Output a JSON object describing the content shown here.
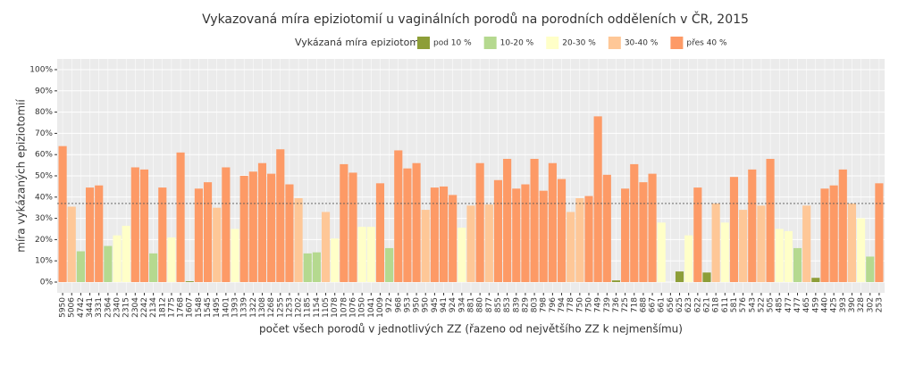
{
  "chart_data": {
    "type": "bar",
    "title": "Vykazovaná míra epiziotomií u vaginálních porodů na porodních odděleních v ČR, 2015",
    "legend_title": "Vykázaná míra epiziotomií",
    "legend": [
      {
        "name": "pod 10 %",
        "color": "#8d9e38"
      },
      {
        "name": "10-20 %",
        "color": "#b5d98f"
      },
      {
        "name": "20-30 %",
        "color": "#ffffc8"
      },
      {
        "name": "30-40 %",
        "color": "#fec797"
      },
      {
        "name": "přes 40 %",
        "color": "#fd9a66"
      }
    ],
    "xlabel": "počet všech porodů v jednotlivých ZZ (řazeno od největšího ZZ k nejmenšímu)",
    "ylabel": "míra vykázaných epiziotomií",
    "categories": [
      "5950",
      "5006",
      "4742",
      "3441",
      "3331",
      "2364",
      "2340",
      "2315",
      "2304",
      "2242",
      "2134",
      "1812",
      "1775",
      "1768",
      "1607",
      "1548",
      "1545",
      "1495",
      "1401",
      "1393",
      "1339",
      "1322",
      "1308",
      "1268",
      "1255",
      "1253",
      "1202",
      "1185",
      "1154",
      "1105",
      "1078",
      "1078",
      "1076",
      "1050",
      "1041",
      "1009",
      "972",
      "968",
      "953",
      "950",
      "950",
      "945",
      "941",
      "924",
      "934",
      "881",
      "880",
      "877",
      "855",
      "853",
      "839",
      "829",
      "803",
      "798",
      "796",
      "794",
      "778",
      "750",
      "750",
      "749",
      "739",
      "736",
      "725",
      "718",
      "688",
      "667",
      "661",
      "656",
      "625",
      "623",
      "622",
      "621",
      "618",
      "611",
      "581",
      "576",
      "543",
      "522",
      "505",
      "485",
      "477",
      "477",
      "465",
      "459",
      "440",
      "425",
      "393",
      "390",
      "328",
      "302",
      "253"
    ],
    "values": [
      64,
      35.5,
      14.5,
      44.5,
      45.5,
      17,
      22,
      26.5,
      54,
      53,
      13.5,
      44.5,
      21,
      61,
      0.4,
      44,
      47,
      35,
      54,
      25,
      50,
      52,
      56,
      51,
      62.5,
      46,
      39.5,
      13.5,
      14,
      33,
      20.5,
      55.5,
      51.5,
      26,
      26,
      46.5,
      16,
      62,
      53.5,
      56,
      34,
      44.5,
      45,
      41,
      25.6,
      36,
      56,
      36.5,
      48,
      58,
      44,
      46,
      58,
      43,
      56,
      48.5,
      33,
      39.5,
      40.5,
      78,
      50.5,
      0.8,
      44,
      55.5,
      47,
      51,
      28,
      null,
      5,
      22,
      44.5,
      4.5,
      37,
      28,
      49.5,
      34,
      53,
      36,
      58,
      25,
      24,
      16,
      36,
      2,
      44,
      45.5,
      53,
      37,
      30,
      12,
      46.5
    ],
    "colors": [
      "#fd9a66",
      "#fec797",
      "#b5d98f",
      "#fd9a66",
      "#fd9a66",
      "#b5d98f",
      "#ffffc8",
      "#ffffc8",
      "#fd9a66",
      "#fd9a66",
      "#b5d98f",
      "#fd9a66",
      "#ffffc8",
      "#fd9a66",
      "#8d9e38",
      "#fd9a66",
      "#fd9a66",
      "#fec797",
      "#fd9a66",
      "#ffffc8",
      "#fd9a66",
      "#fd9a66",
      "#fd9a66",
      "#fd9a66",
      "#fd9a66",
      "#fd9a66",
      "#fec797",
      "#b5d98f",
      "#b5d98f",
      "#fec797",
      "#ffffc8",
      "#fd9a66",
      "#fd9a66",
      "#ffffc8",
      "#ffffc8",
      "#fd9a66",
      "#b5d98f",
      "#fd9a66",
      "#fd9a66",
      "#fd9a66",
      "#fec797",
      "#fd9a66",
      "#fd9a66",
      "#fd9a66",
      "#ffffc8",
      "#fec797",
      "#fd9a66",
      "#fec797",
      "#fd9a66",
      "#fd9a66",
      "#fd9a66",
      "#fd9a66",
      "#fd9a66",
      "#fd9a66",
      "#fd9a66",
      "#fd9a66",
      "#fec797",
      "#fec797",
      "#fd9a66",
      "#fd9a66",
      "#fd9a66",
      "#8d9e38",
      "#fd9a66",
      "#fd9a66",
      "#fd9a66",
      "#fd9a66",
      "#ffffc8",
      null,
      "#8d9e38",
      "#ffffc8",
      "#fd9a66",
      "#8d9e38",
      "#fec797",
      "#ffffc8",
      "#fd9a66",
      "#fec797",
      "#fd9a66",
      "#fec797",
      "#fd9a66",
      "#ffffc8",
      "#ffffc8",
      "#b5d98f",
      "#fec797",
      "#8d9e38",
      "#fd9a66",
      "#fd9a66",
      "#fd9a66",
      "#fec797",
      "#ffffc8",
      "#b5d98f",
      "#fd9a66"
    ],
    "reference_line": 37,
    "ylim": [
      0,
      100
    ],
    "yticks": [
      {
        "value": 0,
        "label": "0%"
      },
      {
        "value": 10,
        "label": "10%"
      },
      {
        "value": 20,
        "label": "20%"
      },
      {
        "value": 30,
        "label": "30%"
      },
      {
        "value": 40,
        "label": "40%"
      },
      {
        "value": 50,
        "label": "50%"
      },
      {
        "value": 60,
        "label": "60%"
      },
      {
        "value": 70,
        "label": "70%"
      },
      {
        "value": 80,
        "label": "80%"
      },
      {
        "value": 90,
        "label": "90%"
      },
      {
        "value": 100,
        "label": "100%"
      }
    ],
    "grid": true
  }
}
